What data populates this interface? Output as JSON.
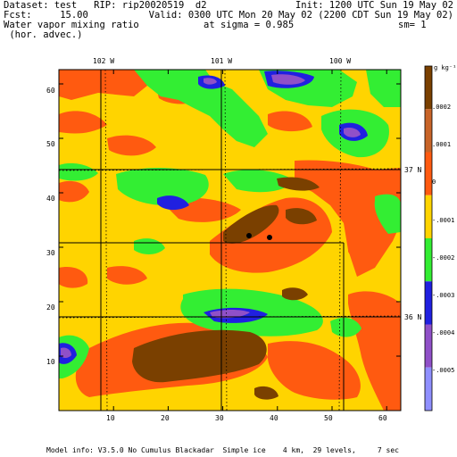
{
  "header": {
    "line1_left": "Dataset: test   RIP: rip20020519  d2",
    "line1_right": "Init: 1200 UTC Sun 19 May 02",
    "line2_left": "Fcst:     15.00",
    "line2_right": "Valid: 0300 UTC Mon 20 May 02 (2200 CDT Sun 19 May 02)",
    "line3_left": "Water vapor mixing ratio",
    "line3_mid": "at sigma = 0.985",
    "line3_right": "sm= 1",
    "line4_left": " (hor. advec.)"
  },
  "map": {
    "top_longitudes": [
      "102 W",
      "101 W",
      "100 W"
    ],
    "right_latitudes": [
      "37 N",
      "36 N"
    ],
    "x_ticks": [
      "10",
      "20",
      "30",
      "40",
      "50",
      "60"
    ],
    "y_ticks": [
      "60",
      "50",
      "40",
      "30",
      "20",
      "10"
    ]
  },
  "colorbar": {
    "unit": "g kg⁻¹",
    "labels": [
      ".0002",
      ".0001",
      "0",
      "-.0001",
      "-.0002",
      "-.0003",
      "-.0004",
      "-.0005"
    ],
    "colors": [
      "#7a4000",
      "#c86428",
      "#ff5a10",
      "#ffd400",
      "#33ee33",
      "#2020e0",
      "#9050c8",
      "#8f8fff"
    ]
  },
  "footer": {
    "model_info": "Model info: V3.5.0 No Cumulus Blackadar  Simple ice    4 km,  29 levels,     7 sec"
  }
}
